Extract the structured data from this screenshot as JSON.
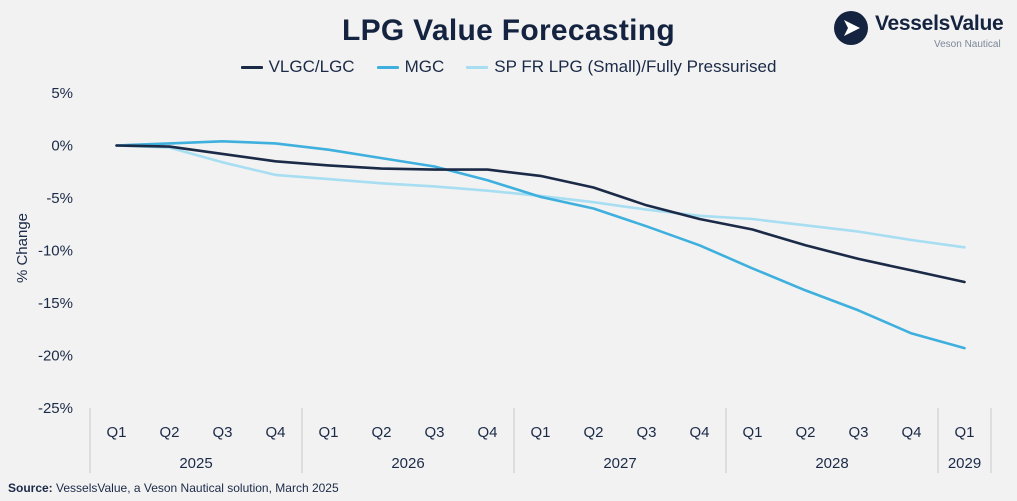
{
  "header": {
    "title": "LPG Value Forecasting"
  },
  "logo": {
    "name": "VesselsValue",
    "sub": "Veson Nautical",
    "icon": "vesselsvalue-logo-icon"
  },
  "source": {
    "label": "Source:",
    "text": "VesselsValue, a Veson Nautical solution, March 2025"
  },
  "chart_data": {
    "type": "line",
    "title": "LPG Value Forecasting",
    "xlabel": "",
    "ylabel": "% Change",
    "ylim": [
      -25,
      5
    ],
    "yticks": [
      5,
      0,
      -5,
      -10,
      -15,
      -20,
      -25
    ],
    "ytick_labels": [
      "5%",
      "0%",
      "-5%",
      "-10%",
      "-15%",
      "-20%",
      "-25%"
    ],
    "grid": false,
    "legend_position": "top",
    "quarters": [
      "Q1",
      "Q2",
      "Q3",
      "Q4",
      "Q1",
      "Q2",
      "Q3",
      "Q4",
      "Q1",
      "Q2",
      "Q3",
      "Q4",
      "Q1",
      "Q2",
      "Q3",
      "Q4",
      "Q1"
    ],
    "years": [
      {
        "label": "2025",
        "count": 4
      },
      {
        "label": "2026",
        "count": 4
      },
      {
        "label": "2027",
        "count": 4
      },
      {
        "label": "2028",
        "count": 4
      },
      {
        "label": "2029",
        "count": 1
      }
    ],
    "series": [
      {
        "name": "VLGC/LGC",
        "color": "#1b2a47",
        "values": [
          0,
          -0.1,
          -0.8,
          -1.5,
          -1.9,
          -2.2,
          -2.3,
          -2.3,
          -2.9,
          -4.0,
          -5.7,
          -7.0,
          -8.0,
          -9.5,
          -10.8,
          -11.9,
          -13.0
        ]
      },
      {
        "name": "MGC",
        "color": "#3fb0de",
        "values": [
          0,
          0.2,
          0.4,
          0.2,
          -0.4,
          -1.2,
          -2.0,
          -3.3,
          -4.9,
          -6.0,
          -7.7,
          -9.5,
          -11.7,
          -13.8,
          -15.7,
          -17.9,
          -19.3
        ]
      },
      {
        "name": "SP FR LPG (Small)/Fully Pressurised",
        "color": "#a7def2",
        "values": [
          0,
          -0.2,
          -1.6,
          -2.8,
          -3.2,
          -3.6,
          -3.9,
          -4.3,
          -4.8,
          -5.4,
          -6.1,
          -6.7,
          -7.0,
          -7.6,
          -8.2,
          -9.0,
          -9.7
        ]
      }
    ]
  }
}
